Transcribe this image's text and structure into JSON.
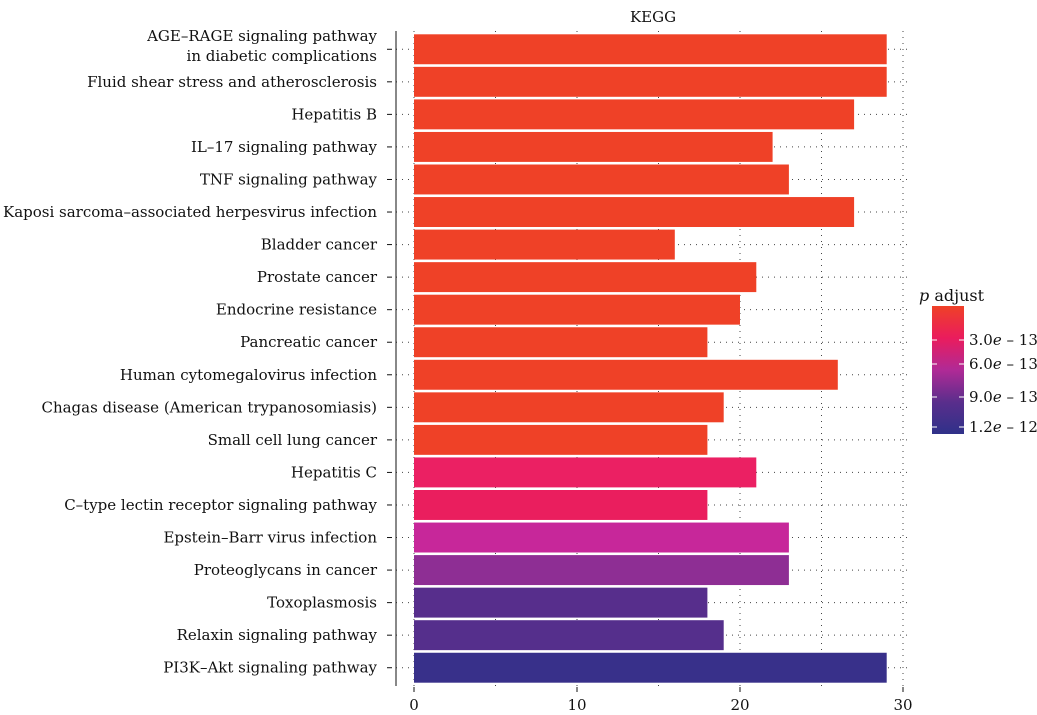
{
  "chart_data": {
    "type": "bar",
    "orientation": "horizontal",
    "title": "KEGG",
    "xlabel": "",
    "ylabel": "",
    "xlim": [
      0,
      30
    ],
    "x_ticks": [
      "0",
      "10",
      "20",
      "30"
    ],
    "grid": true,
    "categories": [
      [
        "AGE–RAGE signaling pathway",
        "in diabetic complications"
      ],
      [
        "Fluid shear stress and atherosclerosis"
      ],
      [
        "Hepatitis B"
      ],
      [
        "IL–17 signaling pathway"
      ],
      [
        "TNF signaling pathway"
      ],
      [
        "Kaposi sarcoma–associated herpesvirus infection"
      ],
      [
        "Bladder cancer"
      ],
      [
        "Prostate cancer"
      ],
      [
        "Endocrine resistance"
      ],
      [
        "Pancreatic cancer"
      ],
      [
        "Human cytomegalovirus infection"
      ],
      [
        "Chagas disease (American trypanosomiasis)"
      ],
      [
        "Small cell lung cancer"
      ],
      [
        "Hepatitis C"
      ],
      [
        "C–type lectin receptor signaling pathway"
      ],
      [
        "Epstein–Barr virus infection"
      ],
      [
        "Proteoglycans in cancer"
      ],
      [
        "Toxoplasmosis"
      ],
      [
        "Relaxin signaling pathway"
      ],
      [
        "PI3K–Akt signaling pathway"
      ]
    ],
    "values": [
      29,
      29,
      27,
      22,
      23,
      27,
      16,
      21,
      20,
      18,
      26,
      19,
      18,
      21,
      18,
      23,
      23,
      18,
      19,
      29
    ],
    "bar_colors": [
      "#ef4127",
      "#ef4127",
      "#ef4127",
      "#ef4127",
      "#ef4127",
      "#ef4127",
      "#ef4127",
      "#ef4127",
      "#ef4127",
      "#ef4127",
      "#ef4127",
      "#ef4127",
      "#ef4127",
      "#eb2063",
      "#ea1e5e",
      "#c7279a",
      "#8e2e94",
      "#572e8c",
      "#552f8c",
      "#38308a"
    ],
    "legend": {
      "title_var": "p",
      "title_rest": " adjust",
      "placement": "right",
      "gradient_colors": [
        "#ef4127",
        "#ea1c5d",
        "#b02a96",
        "#5a2e8c",
        "#2f3189"
      ],
      "labels": [
        {
          "mant": "3.0",
          "exp": "e",
          "rest": " – 13"
        },
        {
          "mant": "6.0",
          "exp": "e",
          "rest": " – 13"
        },
        {
          "mant": "9.0",
          "exp": "e",
          "rest": " – 13"
        },
        {
          "mant": "1.2",
          "exp": "e",
          "rest": " – 12"
        }
      ]
    }
  }
}
